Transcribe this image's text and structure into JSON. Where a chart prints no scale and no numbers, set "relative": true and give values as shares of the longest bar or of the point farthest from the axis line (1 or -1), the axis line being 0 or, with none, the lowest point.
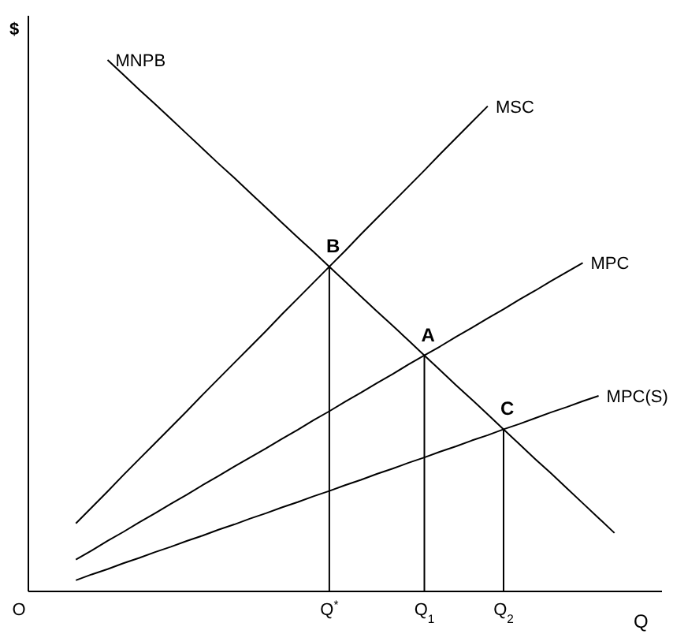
{
  "chart_data": {
    "type": "line",
    "relative": true,
    "ylabel": "$",
    "xlabel": "Q",
    "categories": [
      "O",
      null,
      null,
      null,
      null,
      null,
      null,
      null,
      null,
      null,
      null,
      null,
      null,
      null,
      null,
      null,
      null,
      null,
      null,
      "Q$^{*}$",
      null,
      null,
      null,
      null,
      null,
      "Q$_{1}$",
      null,
      null,
      null,
      null,
      "Q$_{2}$",
      null,
      null,
      null,
      null,
      null,
      null,
      null,
      null,
      null,
      null
    ],
    "marker": "none",
    "line_style": "solid",
    "series": [
      {
        "name": "MNPB",
        "color": "#000000",
        "values": [
          null,
          null,
          null,
          null,
          null,
          1,
          0.972,
          0.944,
          0.917,
          0.889,
          0.861,
          0.833,
          0.805,
          0.778,
          0.75,
          0.722,
          0.694,
          0.666,
          0.639,
          0.611,
          0.583,
          0.555,
          0.527,
          0.5,
          0.472,
          0.444,
          0.416,
          0.388,
          0.361,
          0.333,
          0.305,
          0.277,
          0.249,
          0.222,
          0.194,
          0.166,
          0.138,
          0.11,
          null,
          null,
          null
        ]
      },
      {
        "name": "MSC",
        "color": "#000000",
        "values": [
          null,
          null,
          null,
          0.128,
          0.158,
          0.188,
          0.219,
          0.249,
          0.279,
          0.309,
          0.339,
          0.37,
          0.4,
          0.43,
          0.46,
          0.49,
          0.521,
          0.551,
          0.581,
          0.611,
          0.641,
          0.672,
          0.702,
          0.732,
          0.762,
          0.792,
          0.823,
          0.853,
          0.883,
          0.913,
          null,
          null,
          null,
          null,
          null,
          null,
          null,
          null,
          null,
          null,
          null
        ]
      },
      {
        "name": "MPC",
        "color": "#000000",
        "values": [
          null,
          null,
          null,
          0.06,
          0.077,
          0.095,
          0.112,
          0.13,
          0.147,
          0.165,
          0.182,
          0.2,
          0.217,
          0.235,
          0.252,
          0.269,
          0.287,
          0.304,
          0.322,
          0.339,
          0.357,
          0.374,
          0.392,
          0.409,
          0.427,
          0.444,
          0.461,
          0.479,
          0.496,
          0.514,
          0.531,
          0.549,
          0.566,
          0.584,
          0.601,
          0.618,
          null,
          null,
          null,
          null,
          null
        ]
      },
      {
        "name": "MPC(S)",
        "color": "#000000",
        "values": [
          null,
          null,
          null,
          0.021,
          0.032,
          0.042,
          0.053,
          0.063,
          0.074,
          0.084,
          0.095,
          0.105,
          0.116,
          0.126,
          0.137,
          0.147,
          0.158,
          0.168,
          0.179,
          0.189,
          0.2,
          0.21,
          0.221,
          0.231,
          0.242,
          0.252,
          0.263,
          0.273,
          0.284,
          0.294,
          0.305,
          0.315,
          0.326,
          0.337,
          0.347,
          0.358,
          0.368,
          null,
          null,
          null,
          null
        ]
      },
      {
        "color": "#000000",
        "x": [
          "Q$^{*}$",
          "Q$^{*}$"
        ],
        "values": [
          0,
          0.611
        ]
      },
      {
        "color": "#000000",
        "x": [
          "Q$_{1}$",
          "Q$_{1}$"
        ],
        "values": [
          0,
          0.444
        ]
      },
      {
        "color": "#000000",
        "x": [
          "Q$_{2}$",
          "Q$_{2}$"
        ],
        "values": [
          0,
          0.305
        ]
      }
    ],
    "annotations": [
      {
        "text": "B",
        "x": "Q$^{*}$",
        "y": 0.611
      },
      {
        "text": "A",
        "x": "Q$_{1}$",
        "y": 0.444
      },
      {
        "text": "C",
        "x": "Q$_{2}$",
        "y": 0.305
      }
    ]
  }
}
